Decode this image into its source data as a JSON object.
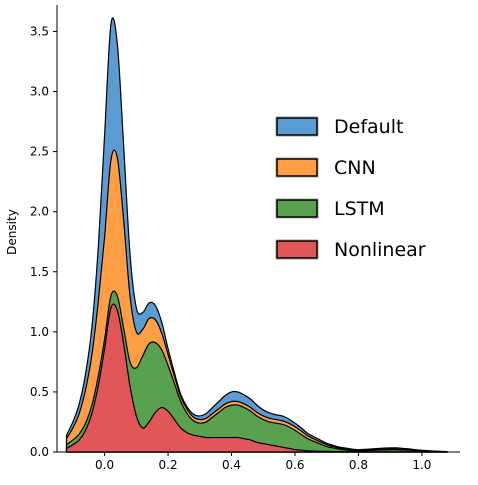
{
  "chart_data": {
    "type": "area",
    "stacked": true,
    "xlabel": "",
    "ylabel": "Density",
    "xlim": [
      -0.15,
      1.12
    ],
    "ylim": [
      0,
      3.72
    ],
    "x_ticks": [
      "0.0",
      "0.2",
      "0.4",
      "0.6",
      "0.8",
      "1.0"
    ],
    "x_tick_values": [
      0.0,
      0.2,
      0.4,
      0.6,
      0.8,
      1.0
    ],
    "y_ticks": [
      "0.0",
      "0.5",
      "1.0",
      "1.5",
      "2.0",
      "2.5",
      "3.0",
      "3.5"
    ],
    "y_tick_values": [
      0.0,
      0.5,
      1.0,
      1.5,
      2.0,
      2.5,
      3.0,
      3.5
    ],
    "legend_position": "right",
    "grid": false,
    "x": [
      -0.12,
      -0.1,
      -0.08,
      -0.06,
      -0.04,
      -0.02,
      0.0,
      0.02,
      0.04,
      0.06,
      0.08,
      0.1,
      0.12,
      0.14,
      0.16,
      0.18,
      0.2,
      0.22,
      0.24,
      0.26,
      0.28,
      0.3,
      0.32,
      0.34,
      0.36,
      0.38,
      0.4,
      0.42,
      0.44,
      0.46,
      0.48,
      0.5,
      0.52,
      0.54,
      0.56,
      0.58,
      0.6,
      0.62,
      0.64,
      0.66,
      0.68,
      0.7,
      0.72,
      0.74,
      0.76,
      0.78,
      0.8,
      0.82,
      0.84,
      0.86,
      0.88,
      0.9,
      0.92,
      0.94,
      0.96,
      0.98,
      1.0,
      1.02,
      1.04,
      1.06,
      1.08
    ],
    "series": [
      {
        "name": "Nonlinear",
        "color": "#e15759",
        "values": [
          0.03,
          0.06,
          0.1,
          0.18,
          0.32,
          0.55,
          0.86,
          1.2,
          1.18,
          0.9,
          0.55,
          0.3,
          0.2,
          0.25,
          0.33,
          0.37,
          0.34,
          0.27,
          0.2,
          0.16,
          0.14,
          0.13,
          0.12,
          0.12,
          0.12,
          0.12,
          0.12,
          0.12,
          0.11,
          0.1,
          0.08,
          0.07,
          0.06,
          0.05,
          0.04,
          0.03,
          0.02,
          0.015,
          0.01,
          0.008,
          0.006,
          0.005,
          0.004,
          0.003,
          0.002,
          0.002,
          0.001,
          0.001,
          0.001,
          0.001,
          0.001,
          0.001,
          0.001,
          0.001,
          0.001,
          0.0,
          0.0,
          0.0,
          0.0,
          0.0,
          0.0
        ]
      },
      {
        "name": "LSTM",
        "color": "#59a14f",
        "values": [
          0.03,
          0.04,
          0.05,
          0.06,
          0.07,
          0.08,
          0.08,
          0.1,
          0.12,
          0.13,
          0.2,
          0.4,
          0.6,
          0.65,
          0.58,
          0.48,
          0.38,
          0.3,
          0.22,
          0.16,
          0.12,
          0.11,
          0.13,
          0.17,
          0.21,
          0.25,
          0.27,
          0.27,
          0.26,
          0.24,
          0.22,
          0.2,
          0.19,
          0.19,
          0.19,
          0.18,
          0.16,
          0.13,
          0.1,
          0.08,
          0.06,
          0.04,
          0.03,
          0.02,
          0.015,
          0.01,
          0.008,
          0.01,
          0.012,
          0.015,
          0.017,
          0.018,
          0.018,
          0.016,
          0.013,
          0.01,
          0.007,
          0.005,
          0.003,
          0.002,
          0.001
        ]
      },
      {
        "name": "CNN",
        "color": "#ff9f45",
        "values": [
          0.05,
          0.1,
          0.17,
          0.28,
          0.42,
          0.62,
          0.85,
          1.13,
          1.15,
          0.9,
          0.55,
          0.3,
          0.22,
          0.21,
          0.19,
          0.14,
          0.09,
          0.06,
          0.04,
          0.035,
          0.03,
          0.03,
          0.03,
          0.03,
          0.03,
          0.03,
          0.03,
          0.03,
          0.03,
          0.03,
          0.03,
          0.03,
          0.03,
          0.03,
          0.03,
          0.03,
          0.03,
          0.03,
          0.025,
          0.02,
          0.018,
          0.015,
          0.012,
          0.01,
          0.008,
          0.006,
          0.005,
          0.005,
          0.005,
          0.005,
          0.005,
          0.005,
          0.005,
          0.004,
          0.004,
          0.003,
          0.003,
          0.002,
          0.002,
          0.001,
          0.001
        ]
      },
      {
        "name": "Default",
        "color": "#5a9bd4",
        "values": [
          0.03,
          0.05,
          0.08,
          0.13,
          0.23,
          0.45,
          0.85,
          1.13,
          0.95,
          0.62,
          0.35,
          0.2,
          0.14,
          0.13,
          0.12,
          0.09,
          0.05,
          0.03,
          0.02,
          0.02,
          0.025,
          0.03,
          0.04,
          0.05,
          0.06,
          0.07,
          0.08,
          0.08,
          0.075,
          0.07,
          0.06,
          0.05,
          0.045,
          0.04,
          0.04,
          0.035,
          0.03,
          0.025,
          0.02,
          0.018,
          0.015,
          0.012,
          0.01,
          0.008,
          0.007,
          0.006,
          0.005,
          0.006,
          0.007,
          0.008,
          0.009,
          0.01,
          0.01,
          0.009,
          0.008,
          0.006,
          0.005,
          0.004,
          0.003,
          0.002,
          0.001
        ]
      }
    ],
    "legend_order": [
      "Default",
      "CNN",
      "LSTM",
      "Nonlinear"
    ]
  }
}
